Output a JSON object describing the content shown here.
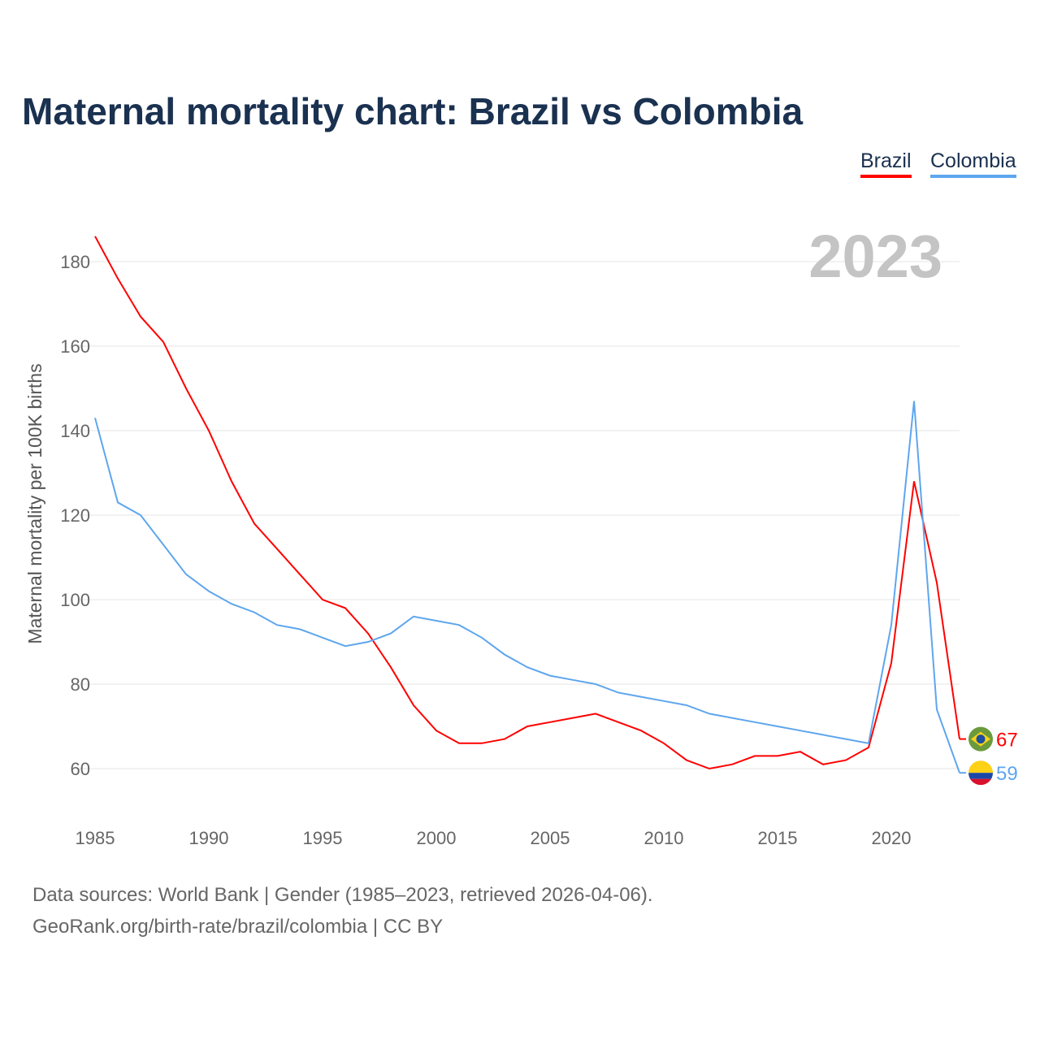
{
  "chart_data": {
    "type": "line",
    "title": "Maternal mortality chart: Brazil vs Colombia",
    "xlabel": "",
    "ylabel": "Maternal mortality per 100K births",
    "year_label": "2023",
    "xlim": [
      1985,
      2023
    ],
    "ylim": [
      52,
      190
    ],
    "xticks": [
      1985,
      1990,
      1995,
      2000,
      2005,
      2010,
      2015,
      2020
    ],
    "yticks": [
      60,
      80,
      100,
      120,
      140,
      160,
      180
    ],
    "grid": true,
    "legend_position": "top-right",
    "x": [
      1985,
      1986,
      1987,
      1988,
      1989,
      1990,
      1991,
      1992,
      1993,
      1994,
      1995,
      1996,
      1997,
      1998,
      1999,
      2000,
      2001,
      2002,
      2003,
      2004,
      2005,
      2006,
      2007,
      2008,
      2009,
      2010,
      2011,
      2012,
      2013,
      2014,
      2015,
      2016,
      2017,
      2018,
      2019,
      2020,
      2021,
      2022,
      2023
    ],
    "series": [
      {
        "name": "Brazil",
        "color": "#ff0000",
        "end_label": "67",
        "values": [
          186,
          176,
          167,
          161,
          150,
          140,
          128,
          118,
          112,
          106,
          100,
          98,
          92,
          84,
          75,
          69,
          66,
          66,
          67,
          70,
          71,
          72,
          73,
          71,
          69,
          66,
          62,
          60,
          61,
          63,
          63,
          64,
          61,
          62,
          65,
          85,
          128,
          104,
          67
        ]
      },
      {
        "name": "Colombia",
        "color": "#5ea6ee",
        "end_label": "59",
        "values": [
          143,
          123,
          120,
          113,
          106,
          102,
          99,
          97,
          94,
          93,
          91,
          89,
          90,
          92,
          96,
          95,
          94,
          91,
          87,
          84,
          82,
          81,
          80,
          78,
          77,
          76,
          75,
          73,
          72,
          71,
          70,
          69,
          68,
          67,
          66,
          94,
          147,
          74,
          59
        ]
      }
    ]
  },
  "footer": {
    "line1": "Data sources: World Bank | Gender (1985–2023, retrieved 2026-04-06).",
    "line2": "GeoRank.org/birth-rate/brazil/colombia | CC BY"
  }
}
